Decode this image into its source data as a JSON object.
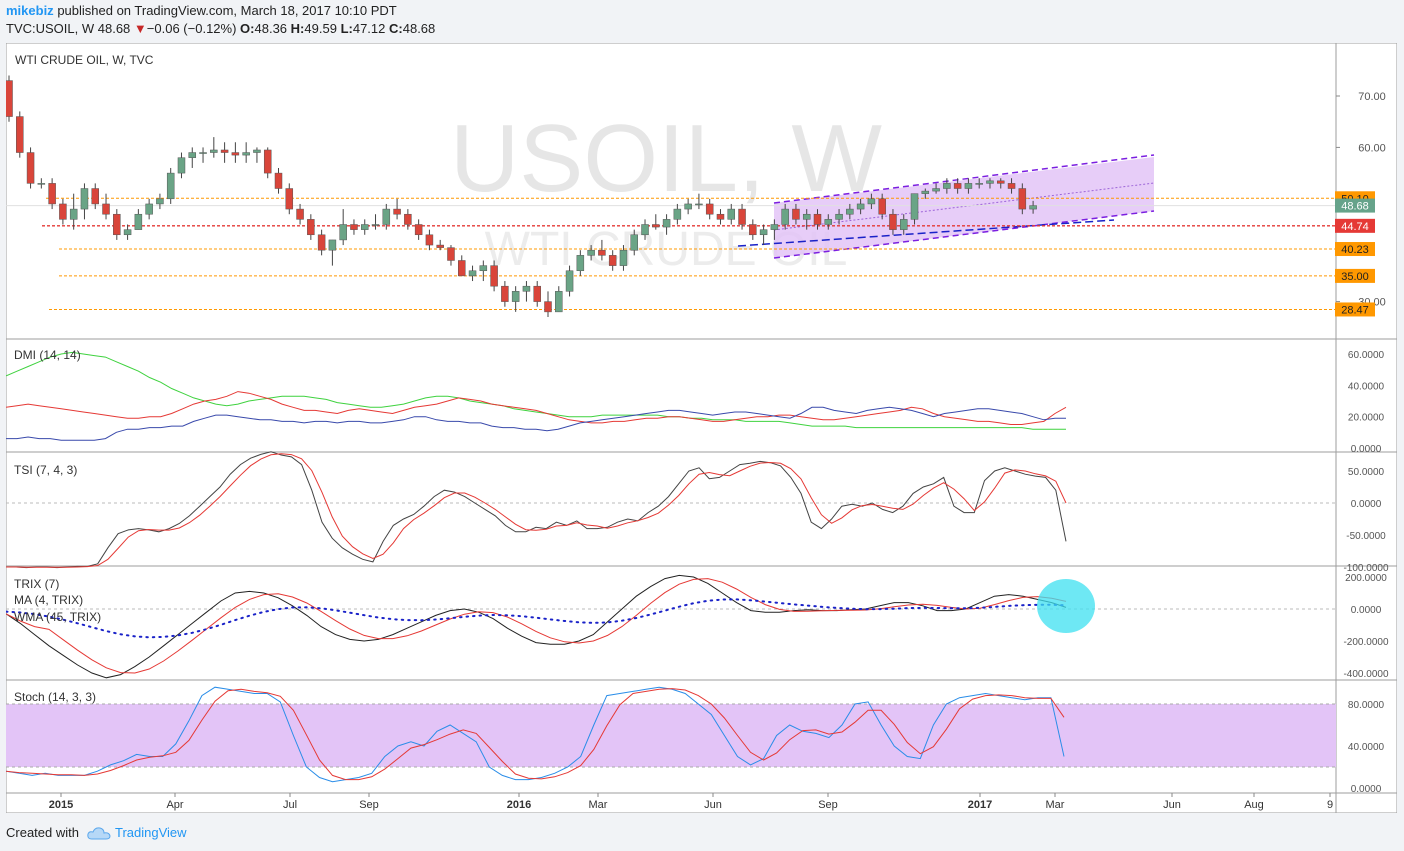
{
  "header": {
    "author": "mikebiz",
    "published": "published on TradingView.com, March 18, 2017 10:10 PDT",
    "symbol": "TVC:USOIL, W",
    "last": "48.68",
    "change": "−0.06 (−0.12%)",
    "o_label": "O:",
    "o": "48.36",
    "h_label": "H:",
    "h": "49.59",
    "l_label": "L:",
    "l": "47.12",
    "c_label": "C:",
    "c": "48.68"
  },
  "main": {
    "title": "WTI CRUDE OIL, W, TVC",
    "watermark1": "USOIL, W",
    "watermark2": "WTI CRUDE OIL",
    "price_axis": [
      "70.00",
      "60.00",
      "30.00"
    ],
    "levels": [
      {
        "label": "50.10",
        "value": 50.1,
        "color": "#ff9800"
      },
      {
        "label": "48.68",
        "value": 48.68,
        "color": "#66a38a"
      },
      {
        "label": "44.74",
        "value": 44.74,
        "color": "#e53935"
      },
      {
        "label": "40.23",
        "value": 40.23,
        "color": "#ff9800"
      },
      {
        "label": "35.00",
        "value": 35.0,
        "color": "#ff9800"
      },
      {
        "label": "28.47",
        "value": 28.47,
        "color": "#ff9800"
      }
    ]
  },
  "panes": {
    "dmi": {
      "title": "DMI (14, 14)",
      "ticks": [
        "60.0000",
        "40.0000",
        "20.0000",
        "0.0000"
      ]
    },
    "tsi": {
      "title": "TSI (7, 4, 3)",
      "ticks": [
        "50.0000",
        "0.0000",
        "-50.0000",
        "-100.0000"
      ]
    },
    "trix": {
      "title1": "TRIX (7)",
      "title2": "MA (4, TRIX)",
      "title3": "WMA (45, TRIX)",
      "ticks": [
        "200.0000",
        "0.0000",
        "-200.0000",
        "-400.0000"
      ]
    },
    "stoch": {
      "title": "Stoch (14, 3, 3)",
      "ticks": [
        "80.0000",
        "40.0000",
        "0.0000"
      ]
    }
  },
  "time_axis": [
    "2015",
    "Apr",
    "Jul",
    "Sep",
    "2016",
    "Mar",
    "Jun",
    "Sep",
    "2017",
    "Mar",
    "Jun",
    "Aug",
    "9"
  ],
  "footer": {
    "created_with": "Created with",
    "brand": "TradingView"
  },
  "colors": {
    "up": "#6aa486",
    "down": "#d9453a",
    "channel": "#d8a8f5",
    "stochBand": "#e3c4f7"
  },
  "chart_data": {
    "type": "candlestick",
    "title": "WTI CRUDE OIL, W, TVC",
    "ylim": [
      25,
      80
    ],
    "x_range": [
      "2014-12",
      "2017-09"
    ],
    "ohlc": [
      [
        73,
        74,
        65,
        66
      ],
      [
        66,
        67,
        58,
        59
      ],
      [
        59,
        60,
        52,
        53
      ],
      [
        53,
        54,
        52,
        53
      ],
      [
        53,
        54,
        48,
        49
      ],
      [
        49,
        50,
        45,
        46
      ],
      [
        46,
        51,
        44,
        48
      ],
      [
        48,
        53,
        46,
        52
      ],
      [
        52,
        53,
        48,
        49
      ],
      [
        49,
        51,
        46,
        47
      ],
      [
        47,
        48,
        42,
        43
      ],
      [
        43,
        45,
        42,
        44
      ],
      [
        44,
        48,
        44,
        47
      ],
      [
        47,
        50,
        46,
        49
      ],
      [
        49,
        51,
        48,
        50
      ],
      [
        50,
        56,
        49,
        55
      ],
      [
        55,
        59,
        54,
        58
      ],
      [
        58,
        60,
        56,
        59
      ],
      [
        59,
        60,
        57,
        59
      ],
      [
        59,
        62,
        58,
        59.5
      ],
      [
        59.5,
        61,
        57,
        59
      ],
      [
        59,
        61,
        57,
        58.5
      ],
      [
        58.5,
        61,
        57,
        59
      ],
      [
        59,
        60,
        57,
        59.5
      ],
      [
        59.5,
        60,
        54,
        55
      ],
      [
        55,
        56,
        51,
        52
      ],
      [
        52,
        53,
        47,
        48
      ],
      [
        48,
        49,
        45,
        46
      ],
      [
        46,
        47,
        42,
        43
      ],
      [
        43,
        44,
        39,
        40
      ],
      [
        40,
        42,
        37,
        42
      ],
      [
        42,
        48,
        41,
        45
      ],
      [
        45,
        46,
        43,
        44
      ],
      [
        44,
        46,
        43,
        45
      ],
      [
        45,
        47,
        44,
        45
      ],
      [
        45,
        49,
        44,
        48
      ],
      [
        48,
        50,
        46,
        47
      ],
      [
        47,
        48,
        44,
        45
      ],
      [
        45,
        46,
        42,
        43
      ],
      [
        43,
        44,
        40,
        41
      ],
      [
        41,
        42,
        40,
        40.5
      ],
      [
        40.5,
        41,
        37,
        38
      ],
      [
        38,
        39,
        35,
        35
      ],
      [
        35,
        37,
        34,
        36
      ],
      [
        36,
        38,
        34,
        37
      ],
      [
        37,
        38,
        32,
        33
      ],
      [
        33,
        34,
        29,
        30
      ],
      [
        30,
        33,
        28,
        32
      ],
      [
        32,
        34,
        30,
        33
      ],
      [
        33,
        34,
        29,
        30
      ],
      [
        30,
        32,
        27,
        28
      ],
      [
        28,
        33,
        28,
        32
      ],
      [
        32,
        37,
        31,
        36
      ],
      [
        36,
        40,
        35,
        39
      ],
      [
        39,
        41,
        38,
        40
      ],
      [
        40,
        42,
        38,
        39
      ],
      [
        39,
        40,
        36,
        37
      ],
      [
        37,
        41,
        36,
        40
      ],
      [
        40,
        44,
        39,
        43
      ],
      [
        43,
        46,
        42,
        45
      ],
      [
        45,
        47,
        44,
        44.5
      ],
      [
        44.5,
        47,
        43,
        46
      ],
      [
        46,
        49,
        45,
        48
      ],
      [
        48,
        50,
        47,
        49
      ],
      [
        49,
        51,
        48,
        49
      ],
      [
        49,
        50,
        46,
        47
      ],
      [
        47,
        48,
        45,
        46
      ],
      [
        46,
        49,
        45,
        48
      ],
      [
        48,
        49,
        44,
        45
      ],
      [
        45,
        46,
        42,
        43
      ],
      [
        43,
        45,
        41,
        44
      ],
      [
        44,
        46,
        42,
        45
      ],
      [
        45,
        49,
        44,
        48
      ],
      [
        48,
        49,
        45,
        46
      ],
      [
        46,
        48,
        44,
        47
      ],
      [
        47,
        48,
        44,
        45
      ],
      [
        45,
        47,
        44,
        46
      ],
      [
        46,
        48,
        45,
        47
      ],
      [
        47,
        49,
        46,
        48
      ],
      [
        48,
        50,
        47,
        49
      ],
      [
        49,
        51,
        48,
        50
      ],
      [
        50,
        51,
        46,
        47
      ],
      [
        47,
        48,
        43,
        44
      ],
      [
        44,
        47,
        43,
        46
      ],
      [
        46,
        51,
        45,
        51
      ],
      [
        51,
        52,
        50,
        51.5
      ],
      [
        51.5,
        53,
        51,
        52
      ],
      [
        52,
        54,
        51,
        53
      ],
      [
        53,
        54,
        51,
        52
      ],
      [
        52,
        54,
        51,
        53
      ],
      [
        53,
        54,
        52,
        53
      ],
      [
        53,
        54,
        52,
        53.5
      ],
      [
        53.5,
        54,
        52,
        53
      ],
      [
        53,
        54,
        51,
        52
      ],
      [
        52,
        53,
        47,
        48
      ],
      [
        48,
        49.6,
        47.1,
        48.68
      ]
    ],
    "dmi_plus": [
      26,
      27,
      28,
      27,
      26,
      25,
      24,
      23,
      22,
      21,
      20,
      19,
      19,
      20,
      20,
      22,
      25,
      28,
      30,
      31,
      33,
      36,
      35,
      33,
      31,
      28,
      26,
      24,
      24,
      23,
      22,
      24,
      25,
      24,
      23,
      22,
      24,
      26,
      27,
      28,
      30,
      32,
      31,
      30,
      28,
      27,
      26,
      25,
      24,
      22,
      20,
      18,
      17,
      16,
      16,
      17,
      17,
      18,
      19,
      19,
      20,
      20,
      19,
      18,
      17,
      17,
      18,
      19,
      20,
      20,
      21,
      21,
      20,
      19,
      18,
      18,
      19,
      20,
      21,
      22,
      23,
      24,
      26,
      25,
      22,
      20,
      19,
      18,
      17,
      17,
      16,
      15,
      15,
      16,
      17,
      22,
      26
    ],
    "dmi_minus": [
      6,
      6,
      7,
      6,
      6,
      5,
      5,
      5,
      5,
      6,
      10,
      12,
      12,
      13,
      13,
      14,
      14,
      17,
      19,
      21,
      21,
      20,
      19,
      18,
      18,
      17,
      17,
      16,
      17,
      17,
      16,
      17,
      17,
      16,
      16,
      17,
      18,
      20,
      20,
      18,
      17,
      17,
      16,
      16,
      14,
      13,
      13,
      12,
      12,
      11,
      12,
      14,
      16,
      17,
      18,
      19,
      20,
      21,
      22,
      23,
      24,
      24,
      23,
      22,
      21,
      22,
      23,
      23,
      22,
      21,
      20,
      19,
      22,
      26,
      26,
      24,
      23,
      22,
      24,
      25,
      26,
      25,
      24,
      22,
      20,
      22,
      23,
      24,
      25,
      25,
      24,
      23,
      22,
      20,
      18,
      19,
      19
    ],
    "dmi_adx": [
      46,
      49,
      52,
      55,
      58,
      60,
      61,
      60,
      59,
      58,
      55,
      52,
      49,
      45,
      42,
      38,
      35,
      32,
      30,
      28,
      27,
      28,
      30,
      31,
      32,
      33,
      33,
      33,
      32,
      31,
      29,
      28,
      27,
      26,
      26,
      27,
      28,
      30,
      32,
      33,
      33,
      32,
      30,
      29,
      28,
      27,
      25,
      24,
      23,
      22,
      21,
      20,
      20,
      20,
      21,
      21,
      21,
      21,
      21,
      21,
      20,
      20,
      19,
      19,
      18,
      18,
      18,
      17,
      17,
      17,
      17,
      16,
      15,
      14,
      14,
      14,
      14,
      13,
      13,
      13,
      13,
      13,
      13,
      13,
      13,
      13,
      13,
      13,
      13,
      13,
      13,
      13,
      13,
      12,
      12,
      12,
      12
    ],
    "tsi": [
      -100,
      -100,
      -101,
      -100,
      -100,
      -101,
      -100,
      -99,
      -99,
      -95,
      -70,
      -48,
      -42,
      -40,
      -42,
      -45,
      -40,
      -32,
      -20,
      -5,
      10,
      25,
      45,
      60,
      70,
      76,
      80,
      75,
      72,
      60,
      20,
      -30,
      -55,
      -70,
      -80,
      -88,
      -92,
      -60,
      -35,
      -25,
      -18,
      -5,
      10,
      20,
      17,
      10,
      0,
      -10,
      -20,
      -35,
      -45,
      -45,
      -38,
      -40,
      -30,
      -35,
      -28,
      -40,
      -40,
      -38,
      -30,
      -25,
      -28,
      -15,
      -5,
      10,
      30,
      50,
      55,
      38,
      40,
      50,
      60,
      62,
      65,
      63,
      58,
      40,
      15,
      -30,
      -40,
      -25,
      -5,
      -2,
      -5,
      0,
      -10,
      -15,
      -5,
      15,
      25,
      30,
      40,
      -5,
      -15,
      -15,
      35,
      50,
      55,
      50,
      45,
      42,
      40,
      20,
      -60
    ],
    "trix": [
      -30,
      -90,
      -160,
      -230,
      -290,
      -350,
      -400,
      -430,
      -410,
      -360,
      -300,
      -230,
      -160,
      -90,
      -20,
      50,
      100,
      110,
      100,
      70,
      20,
      -40,
      -110,
      -160,
      -190,
      -200,
      -190,
      -160,
      -120,
      -80,
      -40,
      -10,
      0,
      -20,
      -60,
      -120,
      -170,
      -210,
      -220,
      -220,
      -200,
      -160,
      -80,
      0,
      80,
      140,
      190,
      210,
      200,
      160,
      100,
      40,
      -10,
      -20,
      -20,
      -10,
      -5,
      -10,
      -10,
      -5,
      0,
      20,
      40,
      40,
      20,
      -10,
      -10,
      0,
      40,
      80,
      90,
      80,
      60,
      40,
      10
    ],
    "stoch_k": [
      16,
      14,
      12,
      14,
      12,
      12,
      12,
      16,
      22,
      26,
      32,
      30,
      30,
      42,
      64,
      88,
      96,
      94,
      92,
      90,
      90,
      82,
      50,
      20,
      10,
      6,
      8,
      10,
      14,
      30,
      40,
      44,
      40,
      54,
      60,
      52,
      44,
      20,
      12,
      8,
      8,
      10,
      14,
      20,
      30,
      60,
      88,
      90,
      92,
      94,
      96,
      94,
      90,
      80,
      70,
      50,
      30,
      22,
      28,
      50,
      60,
      54,
      52,
      48,
      60,
      80,
      82,
      60,
      40,
      30,
      28,
      60,
      80,
      86,
      88,
      90,
      88,
      86,
      84,
      86,
      86,
      30
    ]
  }
}
